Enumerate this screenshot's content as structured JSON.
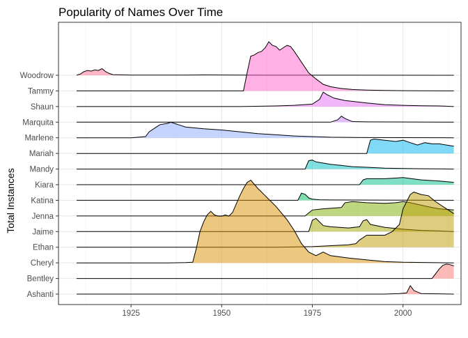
{
  "chart_data": {
    "type": "area",
    "title": "Popularity of Names Over Time",
    "xlabel": "",
    "ylabel": "Total Instances",
    "xlim": [
      1905,
      2016
    ],
    "x_ticks": [
      1925,
      1950,
      1975,
      2000
    ],
    "grid": true,
    "legend": "none",
    "categories": [
      "Woodrow",
      "Tammy",
      "Shaun",
      "Marquita",
      "Marlene",
      "Mariah",
      "Mandy",
      "Kiara",
      "Katina",
      "Jenna",
      "Jaime",
      "Ethan",
      "Cheryl",
      "Bentley",
      "Ashanti"
    ],
    "series": [
      {
        "name": "Woodrow",
        "color": "#FF6C91",
        "points": [
          [
            1910,
            0
          ],
          [
            1911,
            0.1
          ],
          [
            1912,
            0.3
          ],
          [
            1913,
            0.4
          ],
          [
            1914,
            0.35
          ],
          [
            1915,
            0.45
          ],
          [
            1916,
            0.4
          ],
          [
            1917,
            0.55
          ],
          [
            1918,
            0.3
          ],
          [
            1919,
            0.15
          ],
          [
            1920,
            0.05
          ],
          [
            1923,
            0.03
          ],
          [
            1925,
            0.02
          ],
          [
            1940,
            0.02
          ],
          [
            1945,
            0.03
          ],
          [
            1955,
            0.01
          ],
          [
            2014,
            0
          ]
        ]
      },
      {
        "name": "Tammy",
        "color": "#FF61C9",
        "points": [
          [
            1910,
            0
          ],
          [
            1956,
            0
          ],
          [
            1957,
            1.5
          ],
          [
            1958,
            2.9
          ],
          [
            1959,
            3.0
          ],
          [
            1960,
            3.2
          ],
          [
            1961,
            3.3
          ],
          [
            1962,
            3.6
          ],
          [
            1963,
            4.1
          ],
          [
            1964,
            3.8
          ],
          [
            1965,
            3.7
          ],
          [
            1966,
            3.4
          ],
          [
            1967,
            3.6
          ],
          [
            1968,
            3.8
          ],
          [
            1969,
            3.7
          ],
          [
            1970,
            3.3
          ],
          [
            1972,
            2.4
          ],
          [
            1974,
            1.5
          ],
          [
            1976,
            1.0
          ],
          [
            1978,
            0.55
          ],
          [
            1980,
            0.35
          ],
          [
            1983,
            0.2
          ],
          [
            1986,
            0.12
          ],
          [
            1990,
            0.07
          ],
          [
            1995,
            0.04
          ],
          [
            2000,
            0.02
          ],
          [
            2014,
            0
          ]
        ]
      },
      {
        "name": "Shaun",
        "color": "#E76BF3",
        "points": [
          [
            1910,
            0
          ],
          [
            1955,
            0
          ],
          [
            1965,
            0.05
          ],
          [
            1970,
            0.1
          ],
          [
            1975,
            0.2
          ],
          [
            1977,
            0.6
          ],
          [
            1978,
            1.2
          ],
          [
            1979,
            1.0
          ],
          [
            1981,
            0.7
          ],
          [
            1984,
            0.5
          ],
          [
            1987,
            0.4
          ],
          [
            1990,
            0.3
          ],
          [
            1995,
            0.15
          ],
          [
            2000,
            0.1
          ],
          [
            2005,
            0.07
          ],
          [
            2010,
            0.05
          ],
          [
            2014,
            0
          ]
        ]
      },
      {
        "name": "Marquita",
        "color": "#C77CFF",
        "points": [
          [
            1910,
            0
          ],
          [
            1980,
            0
          ],
          [
            1982,
            0.2
          ],
          [
            1983,
            0.5
          ],
          [
            1984,
            0.3
          ],
          [
            1986,
            0.05
          ],
          [
            1990,
            0.02
          ],
          [
            2014,
            0
          ]
        ]
      },
      {
        "name": "Marlene",
        "color": "#8CA8FF",
        "points": [
          [
            1910,
            0
          ],
          [
            1925,
            0
          ],
          [
            1929,
            0.1
          ],
          [
            1930,
            0.5
          ],
          [
            1932,
            0.9
          ],
          [
            1933,
            1.1
          ],
          [
            1935,
            1.2
          ],
          [
            1936,
            1.3
          ],
          [
            1938,
            1.1
          ],
          [
            1940,
            0.9
          ],
          [
            1945,
            0.75
          ],
          [
            1950,
            0.65
          ],
          [
            1955,
            0.5
          ],
          [
            1960,
            0.35
          ],
          [
            1965,
            0.25
          ],
          [
            1970,
            0.15
          ],
          [
            1975,
            0.1
          ],
          [
            1980,
            0.05
          ],
          [
            1990,
            0.02
          ],
          [
            2014,
            0
          ]
        ]
      },
      {
        "name": "Mariah",
        "color": "#00B4F0",
        "points": [
          [
            1910,
            0
          ],
          [
            1990,
            0
          ],
          [
            1991,
            1.1
          ],
          [
            1992,
            1.2
          ],
          [
            1995,
            1.1
          ],
          [
            1998,
            1.0
          ],
          [
            2000,
            1.1
          ],
          [
            2002,
            0.9
          ],
          [
            2004,
            0.7
          ],
          [
            2006,
            0.9
          ],
          [
            2008,
            0.8
          ],
          [
            2010,
            0.8
          ],
          [
            2012,
            0.7
          ],
          [
            2014,
            0.6
          ]
        ]
      },
      {
        "name": "Mandy",
        "color": "#00BFC4",
        "points": [
          [
            1910,
            0
          ],
          [
            1973,
            0
          ],
          [
            1974,
            0.7
          ],
          [
            1975,
            0.75
          ],
          [
            1976,
            0.6
          ],
          [
            1978,
            0.5
          ],
          [
            1980,
            0.4
          ],
          [
            1983,
            0.3
          ],
          [
            1986,
            0.2
          ],
          [
            1990,
            0.15
          ],
          [
            1995,
            0.08
          ],
          [
            2000,
            0.05
          ],
          [
            2005,
            0.03
          ],
          [
            2014,
            0
          ]
        ]
      },
      {
        "name": "Kiara",
        "color": "#00C08B",
        "points": [
          [
            1910,
            0
          ],
          [
            1988,
            0
          ],
          [
            1989,
            0.4
          ],
          [
            1990,
            0.5
          ],
          [
            1995,
            0.5
          ],
          [
            1998,
            0.55
          ],
          [
            2000,
            0.6
          ],
          [
            2005,
            0.4
          ],
          [
            2010,
            0.3
          ],
          [
            2014,
            0.2
          ]
        ]
      },
      {
        "name": "Katina",
        "color": "#00BD5C",
        "points": [
          [
            1910,
            0
          ],
          [
            1971,
            0
          ],
          [
            1972,
            0.6
          ],
          [
            1973,
            0.5
          ],
          [
            1974,
            0.2
          ],
          [
            1975,
            0.1
          ],
          [
            1977,
            0.05
          ],
          [
            1980,
            0.03
          ],
          [
            2014,
            0
          ]
        ]
      },
      {
        "name": "Jenna",
        "color": "#7CAE00",
        "points": [
          [
            1910,
            0
          ],
          [
            1973,
            0
          ],
          [
            1975,
            0.5
          ],
          [
            1978,
            0.6
          ],
          [
            1983,
            0.7
          ],
          [
            1984,
            1.1
          ],
          [
            1986,
            1.2
          ],
          [
            1990,
            1.1
          ],
          [
            1995,
            1.05
          ],
          [
            1998,
            1.1
          ],
          [
            2000,
            1.2
          ],
          [
            2002,
            1.1
          ],
          [
            2005,
            0.9
          ],
          [
            2008,
            0.7
          ],
          [
            2010,
            0.6
          ],
          [
            2014,
            0.5
          ]
        ]
      },
      {
        "name": "Jaime",
        "color": "#A3A500",
        "points": [
          [
            1910,
            0
          ],
          [
            1974,
            0
          ],
          [
            1975,
            0.95
          ],
          [
            1976,
            1.1
          ],
          [
            1977,
            0.8
          ],
          [
            1978,
            0.5
          ],
          [
            1980,
            0.4
          ],
          [
            1985,
            0.3
          ],
          [
            1988,
            0.4
          ],
          [
            1989,
            0.9
          ],
          [
            1990,
            1.0
          ],
          [
            1991,
            0.6
          ],
          [
            1995,
            0.35
          ],
          [
            2000,
            0.2
          ],
          [
            2005,
            0.1
          ],
          [
            2010,
            0.05
          ],
          [
            2014,
            0
          ]
        ]
      },
      {
        "name": "Ethan",
        "color": "#C09B00",
        "points": [
          [
            1910,
            0
          ],
          [
            1965,
            0
          ],
          [
            1975,
            0.05
          ],
          [
            1985,
            0.2
          ],
          [
            1987,
            0.3
          ],
          [
            1988,
            0.6
          ],
          [
            1990,
            1.0
          ],
          [
            1995,
            1.0
          ],
          [
            1997,
            1.3
          ],
          [
            1999,
            1.9
          ],
          [
            2000,
            3.2
          ],
          [
            2001,
            3.8
          ],
          [
            2002,
            4.4
          ],
          [
            2003,
            4.6
          ],
          [
            2005,
            4.4
          ],
          [
            2007,
            4.3
          ],
          [
            2009,
            3.8
          ],
          [
            2011,
            3.4
          ],
          [
            2013,
            3.0
          ],
          [
            2014,
            2.8
          ]
        ]
      },
      {
        "name": "Cheryl",
        "color": "#D89000",
        "points": [
          [
            1910,
            0
          ],
          [
            1935,
            0
          ],
          [
            1940,
            0.02
          ],
          [
            1942,
            0.05
          ],
          [
            1943,
            1.2
          ],
          [
            1944,
            2.6
          ],
          [
            1945,
            3.4
          ],
          [
            1946,
            4.0
          ],
          [
            1947,
            4.3
          ],
          [
            1948,
            4.0
          ],
          [
            1949,
            3.9
          ],
          [
            1950,
            3.9
          ],
          [
            1951,
            4.0
          ],
          [
            1952,
            3.9
          ],
          [
            1953,
            4.2
          ],
          [
            1955,
            5.6
          ],
          [
            1956,
            6.2
          ],
          [
            1957,
            6.7
          ],
          [
            1958,
            6.9
          ],
          [
            1960,
            6.2
          ],
          [
            1962,
            5.6
          ],
          [
            1965,
            4.7
          ],
          [
            1968,
            3.6
          ],
          [
            1970,
            2.7
          ],
          [
            1972,
            1.6
          ],
          [
            1974,
            0.9
          ],
          [
            1976,
            0.6
          ],
          [
            1978,
            0.9
          ],
          [
            1980,
            0.6
          ],
          [
            1985,
            0.4
          ],
          [
            1990,
            0.25
          ],
          [
            1995,
            0.1
          ],
          [
            2000,
            0.05
          ],
          [
            2014,
            0
          ]
        ]
      },
      {
        "name": "Bentley",
        "color": "#F8766D",
        "points": [
          [
            1910,
            0
          ],
          [
            2008,
            0
          ],
          [
            2010,
            0.8
          ],
          [
            2011,
            1.1
          ],
          [
            2012,
            1.2
          ],
          [
            2013,
            1.15
          ],
          [
            2014,
            1.05
          ]
        ]
      },
      {
        "name": "Ashanti",
        "color": "#F8766D",
        "points": [
          [
            1910,
            0
          ],
          [
            1995,
            0
          ],
          [
            1999,
            0.05
          ],
          [
            2001,
            0.1
          ],
          [
            2002,
            0.7
          ],
          [
            2003,
            0.3
          ],
          [
            2005,
            0.05
          ],
          [
            2008,
            0.03
          ],
          [
            2014,
            0
          ]
        ]
      }
    ]
  }
}
